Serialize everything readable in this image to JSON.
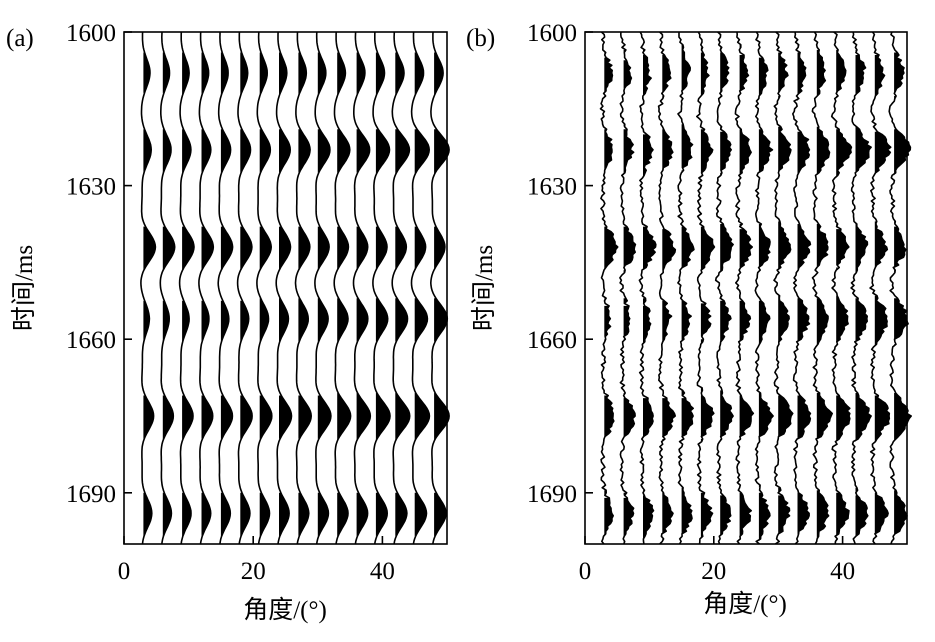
{
  "chart_data": [
    {
      "type": "line",
      "subtype": "seismic-wiggle-trace",
      "panel_label": "(a)",
      "xlabel": "角度/(°)",
      "ylabel": "时间/ms",
      "xlim": [
        0,
        50
      ],
      "ylim": [
        1600,
        1700
      ],
      "y_inverted": true,
      "x_ticks": [
        "0",
        "20",
        "40"
      ],
      "y_ticks": [
        "1600",
        "1630",
        "1660",
        "1690"
      ],
      "trace_angles": [
        3,
        6,
        9,
        12,
        15,
        18,
        21,
        24,
        27,
        30,
        33,
        36,
        39,
        42,
        45,
        48
      ],
      "events": [
        {
          "time": 1608,
          "polarity": 1,
          "amp_near": 0.55,
          "amp_far": 0.75
        },
        {
          "time": 1623,
          "polarity": 1,
          "amp_near": 0.65,
          "amp_far": 1.25
        },
        {
          "time": 1642,
          "polarity": 1,
          "amp_near": 1.0,
          "amp_far": 0.9
        },
        {
          "time": 1656,
          "polarity": 1,
          "amp_near": 0.5,
          "amp_far": 1.1
        },
        {
          "time": 1675,
          "polarity": 1,
          "amp_near": 0.85,
          "amp_far": 1.25
        },
        {
          "time": 1694,
          "polarity": 1,
          "amp_near": 0.7,
          "amp_far": 1.0
        }
      ],
      "fill": "positive lobes black",
      "noise": false,
      "grid": false
    },
    {
      "type": "line",
      "subtype": "seismic-wiggle-trace",
      "panel_label": "(b)",
      "xlabel": "角度/(°)",
      "ylabel": "时间/ms",
      "xlim": [
        0,
        50
      ],
      "ylim": [
        1600,
        1700
      ],
      "y_inverted": true,
      "x_ticks": [
        "0",
        "20",
        "40"
      ],
      "y_ticks": [
        "1600",
        "1630",
        "1660",
        "1690"
      ],
      "trace_angles": [
        3,
        6,
        9,
        12,
        15,
        18,
        21,
        24,
        27,
        30,
        33,
        36,
        39,
        42,
        45,
        48
      ],
      "events": [
        {
          "time": 1608,
          "polarity": 1,
          "amp_near": 0.55,
          "amp_far": 0.75
        },
        {
          "time": 1623,
          "polarity": 1,
          "amp_near": 0.65,
          "amp_far": 1.25
        },
        {
          "time": 1642,
          "polarity": 1,
          "amp_near": 1.0,
          "amp_far": 0.9
        },
        {
          "time": 1656,
          "polarity": 1,
          "amp_near": 0.5,
          "amp_far": 1.1
        },
        {
          "time": 1675,
          "polarity": 1,
          "amp_near": 0.85,
          "amp_far": 1.25
        },
        {
          "time": 1694,
          "polarity": 1,
          "amp_near": 0.7,
          "amp_far": 1.0
        }
      ],
      "fill": "positive lobes black",
      "noise": true,
      "grid": false
    }
  ]
}
